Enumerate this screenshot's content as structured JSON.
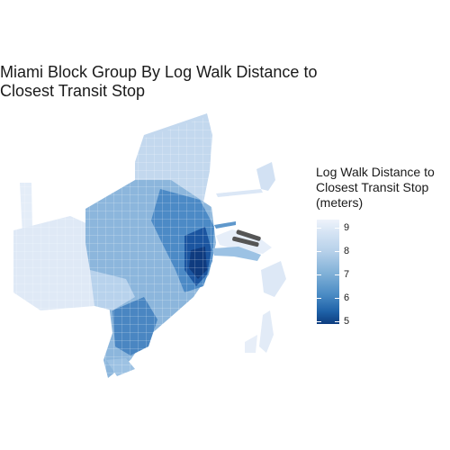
{
  "title": "Miami Block Group By Log Walk Distance to\nClosest Transit Stop",
  "legend": {
    "title": "Log Walk Distance to\nClosest Transit Stop\n(meters)",
    "min": 5,
    "max": 9.4,
    "ticks": [
      "9",
      "8",
      "7",
      "6",
      "5"
    ],
    "colors": [
      "#eef3fb",
      "#b7d1ea",
      "#7fb0d7",
      "#4a8bc4",
      "#1f62a8",
      "#0d3d7f"
    ]
  },
  "map": {
    "region": "Miami",
    "colors": {
      "lightest": "#e9f0fa",
      "light": "#c8dbef",
      "mid": "#8fb9dd",
      "midDark": "#5c97cb",
      "dark": "#2c6fb1",
      "darkest": "#123f85",
      "land": "#ffffff"
    }
  }
}
